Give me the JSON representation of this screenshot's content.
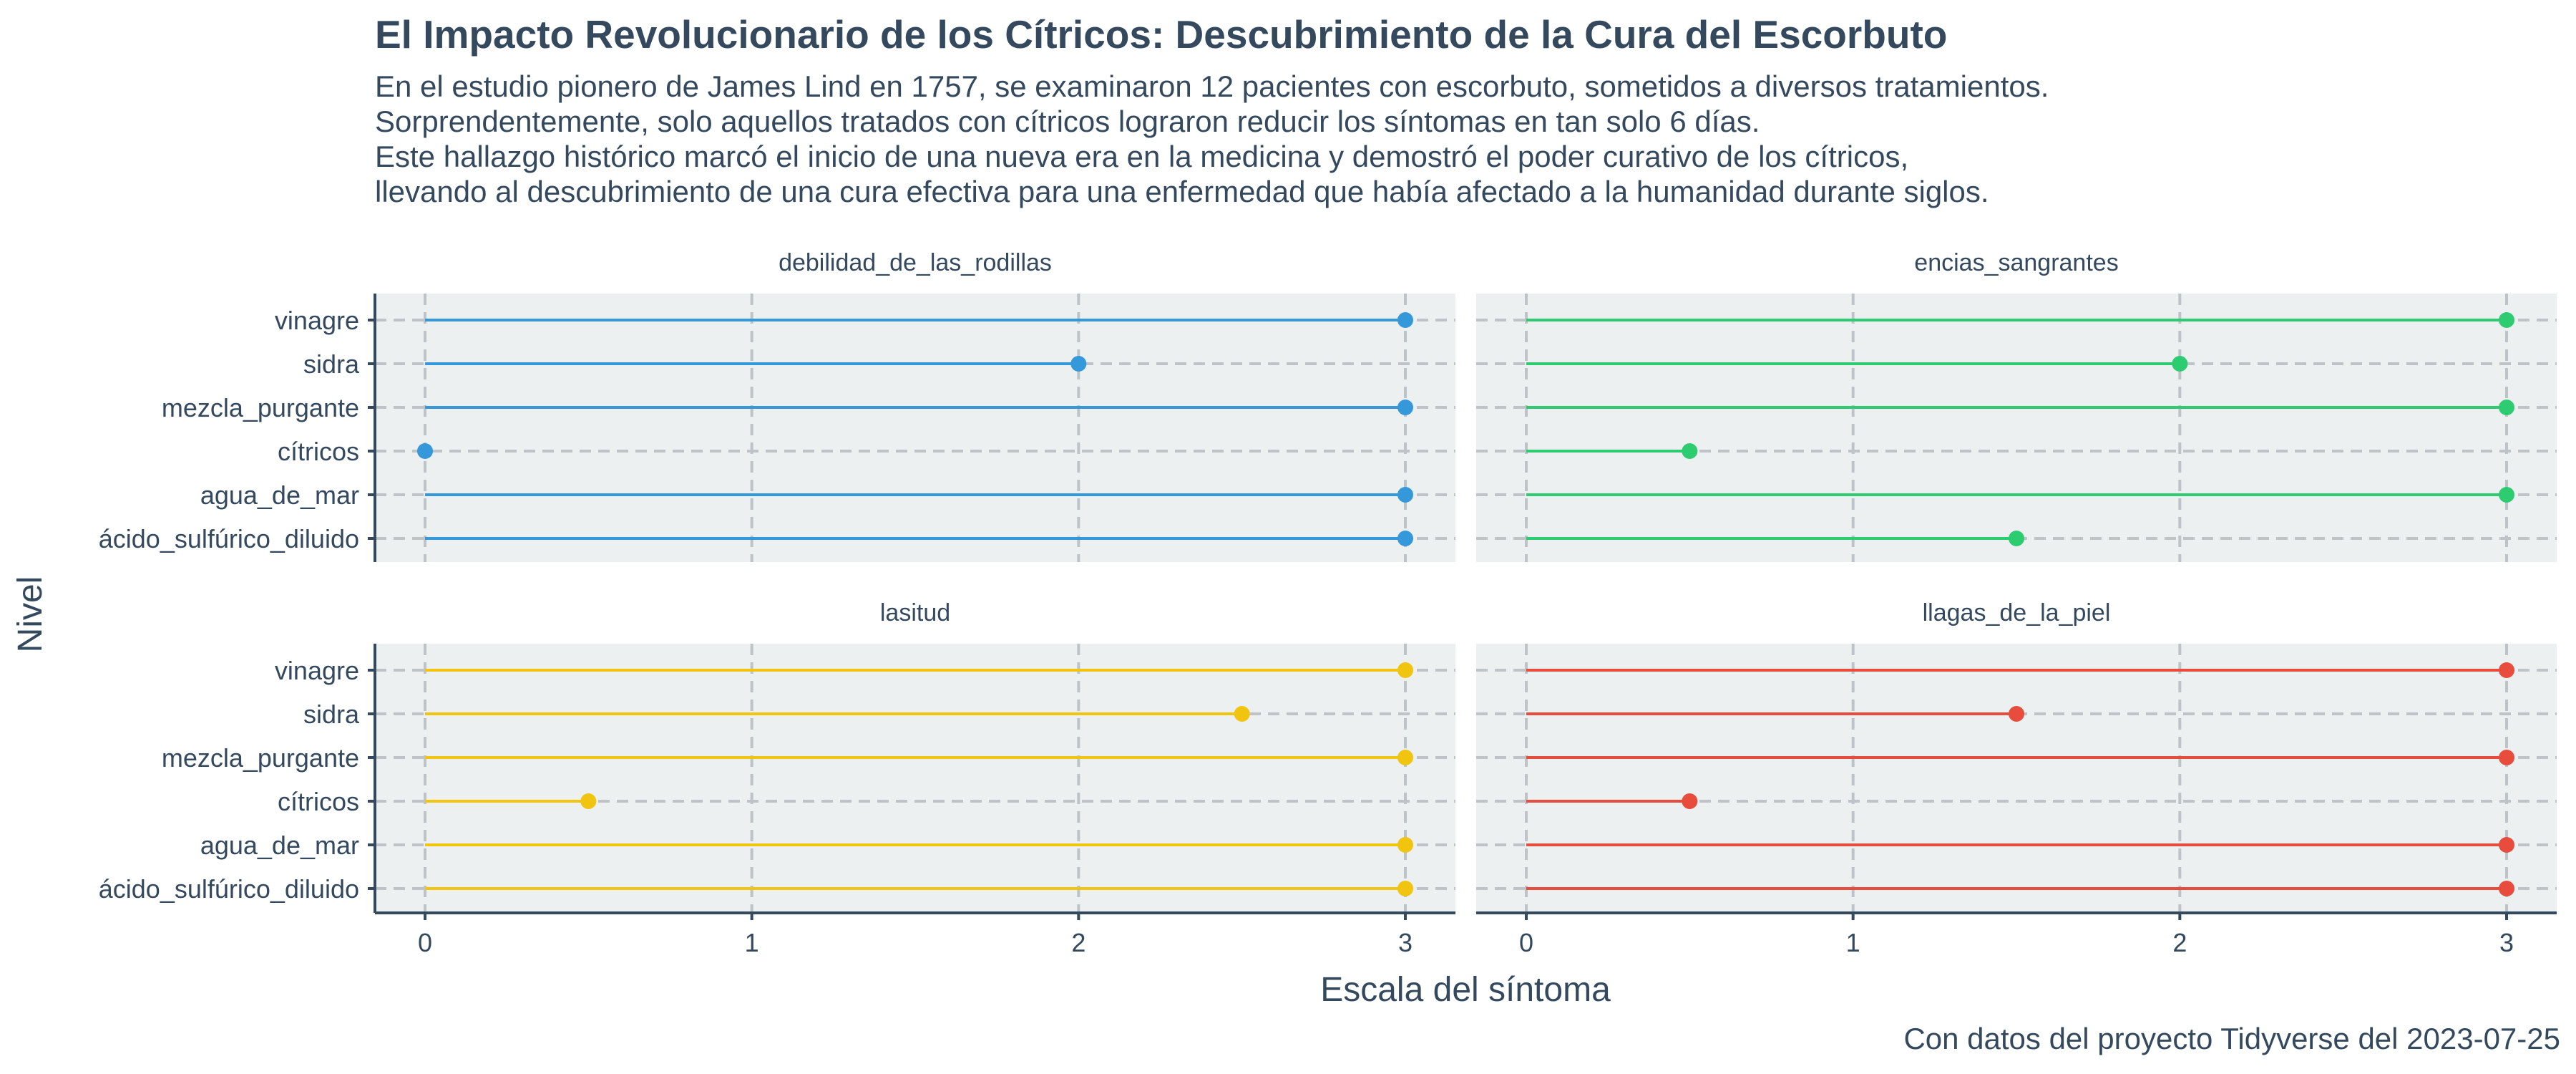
{
  "title": "El Impacto Revolucionario de los Cítricos: Descubrimiento de la Cura del Escorbuto",
  "subtitle_lines": [
    "En el estudio pionero de James Lind en 1757, se examinaron 12 pacientes con escorbuto, sometidos a diversos tratamientos.",
    "Sorprendentemente, solo aquellos tratados con cítricos lograron reducir los síntomas en tan solo 6 días.",
    "Este hallazgo histórico marcó el inicio de una nueva era en la medicina y demostró el poder curativo de los cítricos,",
    "llevando al descubrimiento de una cura efectiva para una enfermedad que había afectado a la humanidad durante siglos."
  ],
  "caption": "Con datos del proyecto Tidyverse del 2023-07-25",
  "colors": {
    "panel_bg": "#ecf0f1",
    "grid": "#bdc3c7",
    "axis": "#34495e",
    "text": "#34495e"
  },
  "chart_data": {
    "type": "lollipop",
    "xlabel": "Escala del síntoma",
    "ylabel": "Nivel",
    "xlim": [
      0,
      3
    ],
    "xticks": [
      0,
      1,
      2,
      3
    ],
    "categories": [
      "vinagre",
      "sidra",
      "mezcla_purgante",
      "cítricos",
      "agua_de_mar",
      "ácido_sulfúrico_diluido"
    ],
    "facets": [
      {
        "name": "debilidad_de_las_rodillas",
        "color": "#3498db",
        "values": [
          3,
          2,
          3,
          0,
          3,
          3
        ]
      },
      {
        "name": "encias_sangrantes",
        "color": "#2ecc71",
        "values": [
          3,
          2,
          3,
          0.5,
          3,
          1.5
        ]
      },
      {
        "name": "lasitud",
        "color": "#f1c40f",
        "values": [
          3,
          2.5,
          3,
          0.5,
          3,
          3
        ]
      },
      {
        "name": "llagas_de_la_piel",
        "color": "#e74c3c",
        "values": [
          3,
          1.5,
          3,
          0.5,
          3,
          3
        ]
      }
    ],
    "grid": true,
    "legend": "none"
  }
}
